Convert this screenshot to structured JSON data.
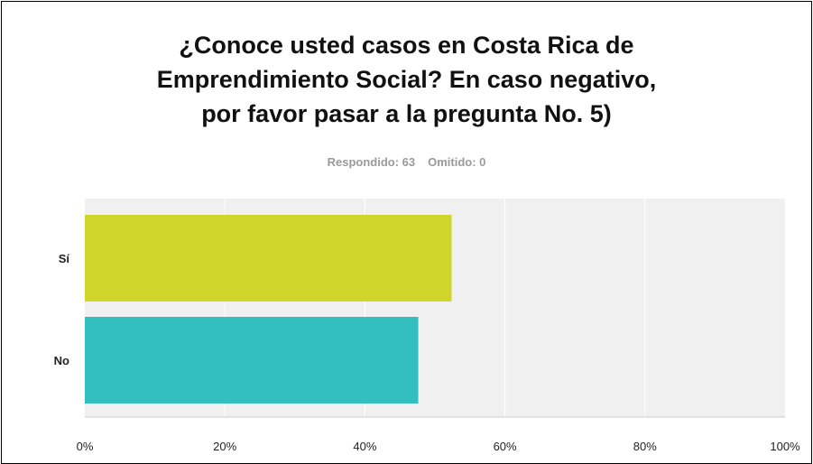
{
  "header": {
    "title_lines": [
      "¿Conoce usted casos en Costa Rica de",
      "Emprendimiento Social? En caso negativo,",
      "por favor pasar a la pregunta No. 5)"
    ],
    "answered_label": "Respondido: 63",
    "skipped_label": "Omitido: 0"
  },
  "chart_data": {
    "type": "bar",
    "orientation": "horizontal",
    "title": "¿Conoce usted casos en Costa Rica de Emprendimiento Social? En caso negativo, por favor pasar a la pregunta No. 5)",
    "categories": [
      "Sí",
      "No"
    ],
    "values": [
      52.38,
      47.62
    ],
    "colors": [
      "#cfd52a",
      "#33bfc0"
    ],
    "xlim": [
      0,
      100
    ],
    "x_ticks": [
      "0%",
      "20%",
      "40%",
      "60%",
      "80%",
      "100%"
    ],
    "grid": true,
    "plot_background": "#f0f0f0"
  }
}
